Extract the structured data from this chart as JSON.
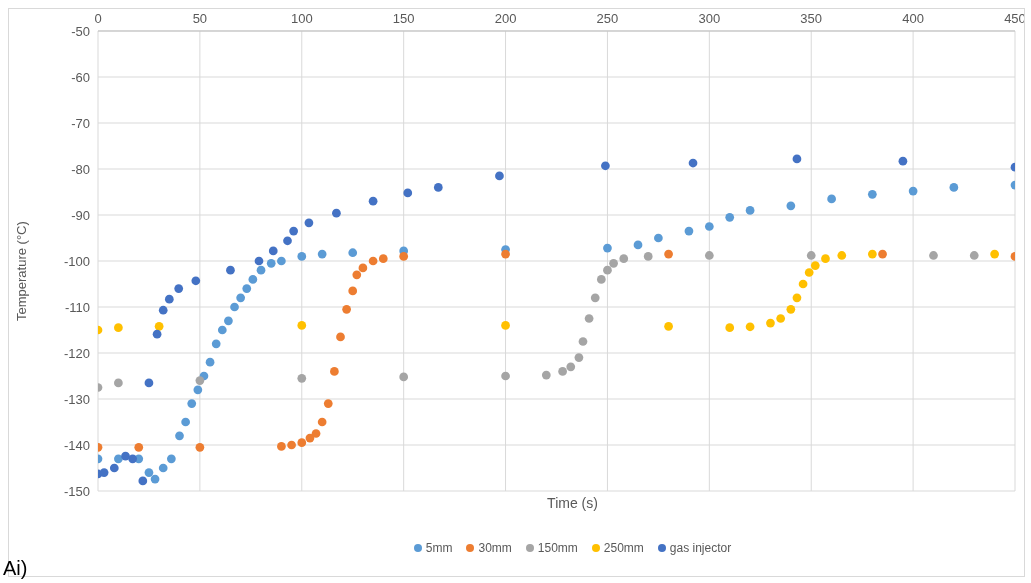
{
  "chart_data": {
    "type": "scatter",
    "xlabel": "Time (s)",
    "ylabel": "Temperature (°C)",
    "xlim": [
      0,
      450
    ],
    "xticks": [
      0,
      50,
      100,
      150,
      200,
      250,
      300,
      350,
      400,
      450
    ],
    "ylim": [
      -150,
      -50
    ],
    "yticks": [
      -50,
      -60,
      -70,
      -80,
      -90,
      -100,
      -110,
      -120,
      -130,
      -140,
      -150
    ],
    "grid": true,
    "legend": "bottom",
    "marker": "circle",
    "annotations": [
      "Ai)"
    ],
    "series": [
      {
        "name": "5mm",
        "color": "#5b9bd5",
        "x": [
          0,
          10,
          20,
          25,
          28,
          32,
          36,
          40,
          43,
          46,
          49,
          52,
          55,
          58,
          61,
          64,
          67,
          70,
          73,
          76,
          80,
          85,
          90,
          100,
          110,
          125,
          150,
          200,
          250,
          265,
          275,
          290,
          300,
          310,
          320,
          340,
          360,
          380,
          400,
          420,
          450
        ],
        "values": [
          -143,
          -143,
          -143,
          -146,
          -147.4,
          -145,
          -143,
          -138,
          -135,
          -131,
          -128,
          -125,
          -122,
          -118,
          -115,
          -113,
          -110,
          -108,
          -106,
          -104,
          -102,
          -100.5,
          -100,
          -99,
          -98.5,
          -98.2,
          -97.8,
          -97.5,
          -97.2,
          -96.5,
          -95,
          -93.5,
          -92.5,
          -90.5,
          -89,
          -88,
          -86.5,
          -85.5,
          -84.8,
          -84,
          -83.5
        ]
      },
      {
        "name": "30mm",
        "color": "#ed7d31",
        "x": [
          0,
          20,
          50,
          90,
          95,
          100,
          104,
          107,
          110,
          113,
          116,
          119,
          122,
          125,
          127,
          130,
          135,
          140,
          150,
          200,
          280,
          385,
          450
        ],
        "values": [
          -140.5,
          -140.5,
          -140.5,
          -140.3,
          -140,
          -139.5,
          -138.5,
          -137.5,
          -135,
          -131,
          -124,
          -116.5,
          -110.5,
          -106.5,
          -103,
          -101.5,
          -100,
          -99.5,
          -99,
          -98.5,
          -98.5,
          -98.5,
          -99
        ]
      },
      {
        "name": "150mm",
        "color": "#a5a5a5",
        "x": [
          0,
          10,
          50,
          100,
          150,
          200,
          220,
          228,
          232,
          236,
          238,
          241,
          244,
          247,
          250,
          253,
          258,
          270,
          300,
          350,
          410,
          430
        ],
        "values": [
          -127.5,
          -126.5,
          -126,
          -125.5,
          -125.2,
          -125,
          -124.8,
          -124,
          -123,
          -121,
          -117.5,
          -112.5,
          -108,
          -104,
          -102,
          -100.5,
          -99.5,
          -99,
          -98.8,
          -98.8,
          -98.8,
          -98.8
        ]
      },
      {
        "name": "250mm",
        "color": "#ffc000",
        "x": [
          0,
          10,
          30,
          100,
          200,
          280,
          310,
          320,
          330,
          335,
          340,
          343,
          346,
          349,
          352,
          357,
          365,
          380,
          440
        ],
        "values": [
          -115,
          -114.5,
          -114.2,
          -114,
          -114,
          -114.2,
          -114.5,
          -114.3,
          -113.5,
          -112.5,
          -110.5,
          -108,
          -105,
          -102.5,
          -101,
          -99.5,
          -98.8,
          -98.5,
          -98.5
        ]
      },
      {
        "name": "gas injector",
        "color": "#4472c4",
        "x": [
          0,
          3,
          8,
          13.5,
          17,
          22,
          25,
          29,
          32,
          35,
          39.6,
          48,
          65,
          79,
          86,
          93,
          96,
          103.5,
          117,
          135,
          152,
          167,
          197,
          249,
          292,
          343,
          395,
          450
        ],
        "values": [
          -146.3,
          -146,
          -145,
          -142.4,
          -143,
          -147.8,
          -126.5,
          -115.9,
          -110.7,
          -108.3,
          -106,
          -104.3,
          -102,
          -100,
          -97.8,
          -95.6,
          -93.5,
          -91.7,
          -89.6,
          -87,
          -85.2,
          -84,
          -81.5,
          -79.3,
          -78.7,
          -77.8,
          -78.3,
          -79.6
        ]
      }
    ]
  }
}
